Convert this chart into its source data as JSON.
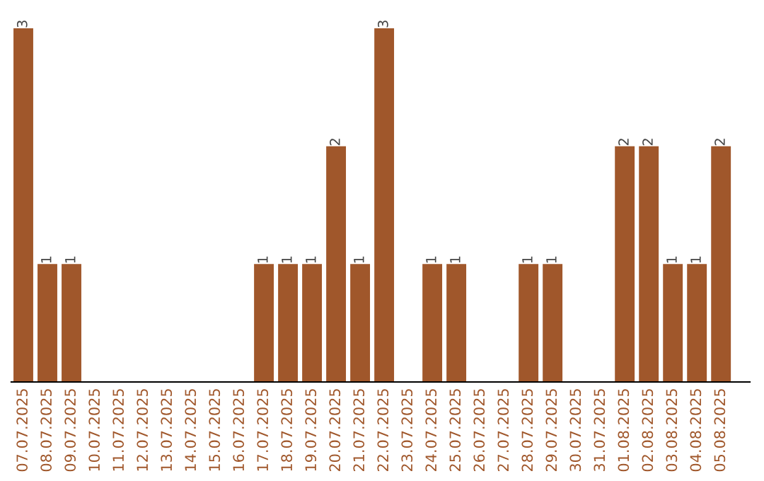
{
  "chart_data": {
    "type": "bar",
    "categories": [
      "07.07.2025",
      "08.07.2025",
      "09.07.2025",
      "10.07.2025",
      "11.07.2025",
      "12.07.2025",
      "13.07.2025",
      "14.07.2025",
      "15.07.2025",
      "16.07.2025",
      "17.07.2025",
      "18.07.2025",
      "19.07.2025",
      "20.07.2025",
      "21.07.2025",
      "22.07.2025",
      "23.07.2025",
      "24.07.2025",
      "25.07.2025",
      "26.07.2025",
      "27.07.2025",
      "28.07.2025",
      "29.07.2025",
      "30.07.2025",
      "31.07.2025",
      "01.08.2025",
      "02.08.2025",
      "03.08.2025",
      "04.08.2025",
      "05.08.2025"
    ],
    "values": [
      3,
      1,
      1,
      0,
      0,
      0,
      0,
      0,
      0,
      0,
      1,
      1,
      1,
      2,
      1,
      3,
      0,
      1,
      1,
      0,
      0,
      1,
      1,
      0,
      0,
      2,
      2,
      1,
      1,
      2
    ],
    "value_labels": [
      "3",
      "1",
      "1",
      null,
      null,
      null,
      null,
      null,
      null,
      null,
      "1",
      "1",
      "1",
      "2",
      "1",
      "3",
      null,
      "1",
      "1",
      null,
      null,
      "1",
      "1",
      null,
      null,
      "2",
      "2",
      "1",
      "1",
      "2"
    ],
    "color": "#a0572b",
    "grid": false,
    "legend": false
  }
}
